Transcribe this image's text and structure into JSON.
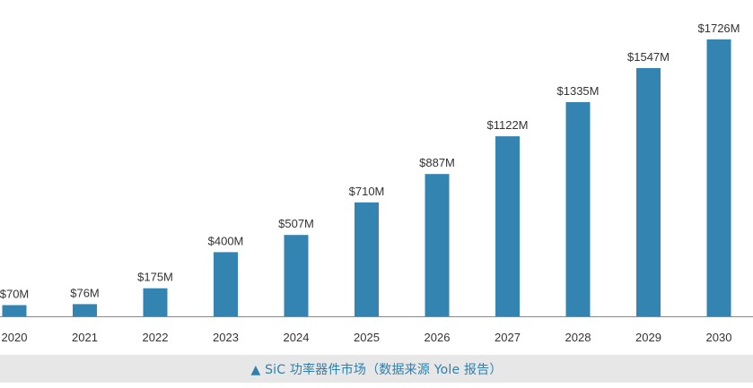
{
  "caption": {
    "text": "▲ SiC 功率器件市场（数据来源 Yole 报告）"
  },
  "colors": {
    "bar": "#3384b0",
    "axis": "#888888",
    "text": "#333333",
    "caption_text": "#2f7fab",
    "caption_bg": "#e7e7e7"
  },
  "chart_data": {
    "type": "bar",
    "title": "",
    "xlabel": "",
    "ylabel": "",
    "unit": "$M",
    "categories": [
      "2020",
      "2021",
      "2022",
      "2023",
      "2024",
      "2025",
      "2026",
      "2027",
      "2028",
      "2029",
      "2030"
    ],
    "values": [
      70,
      76,
      175,
      400,
      507,
      710,
      887,
      1122,
      1335,
      1547,
      1726
    ],
    "data_labels": [
      "$70M",
      "$76M",
      "$175M",
      "$400M",
      "$507M",
      "$710M",
      "$887M",
      "$1122M",
      "$1335M",
      "$1547M",
      "$1726M"
    ],
    "ylim": [
      0,
      1800
    ],
    "grid": false,
    "legend": "none"
  }
}
